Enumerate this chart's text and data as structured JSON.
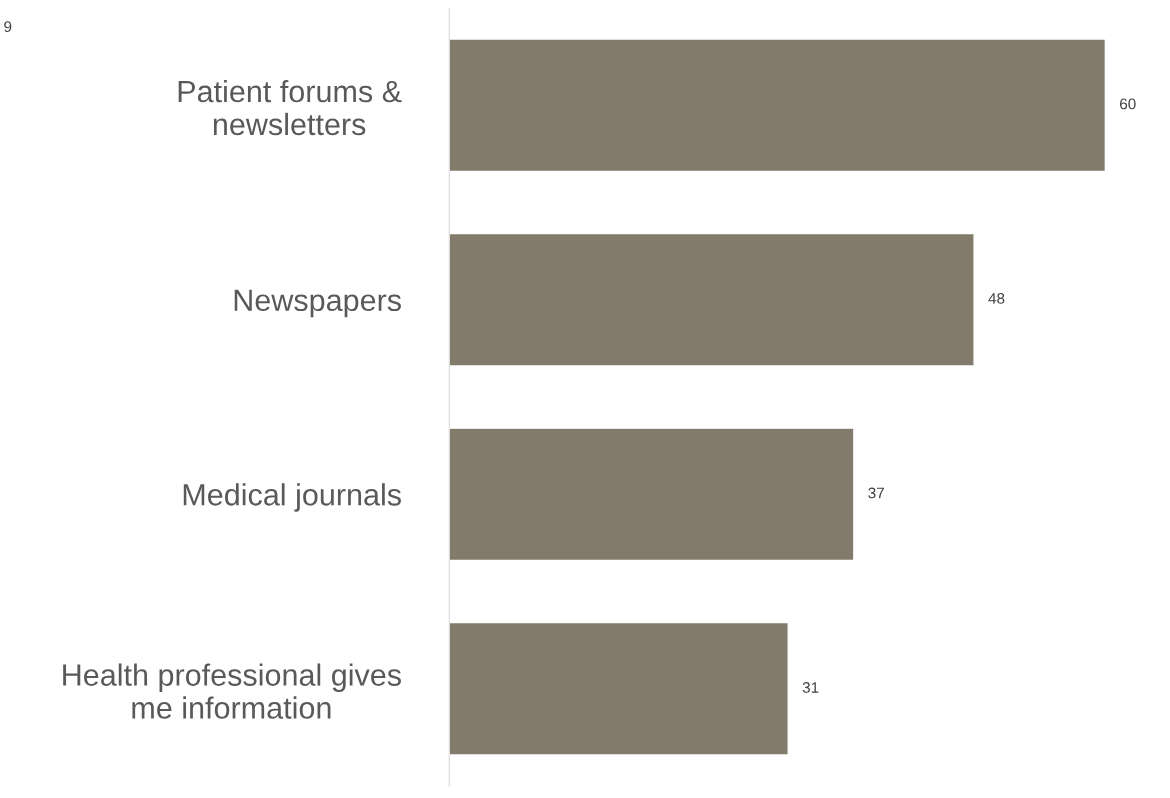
{
  "chart_data": {
    "type": "bar",
    "orientation": "horizontal",
    "categories": [
      "Patient forums &\nnewsletters",
      "Newspapers",
      "Medical journals",
      "Health professional gives\nme information"
    ],
    "values": [
      60,
      48,
      37,
      31
    ],
    "color": "#827a6b",
    "data_labels": true,
    "grid": false,
    "legend": false,
    "annotations": [
      "9"
    ]
  }
}
